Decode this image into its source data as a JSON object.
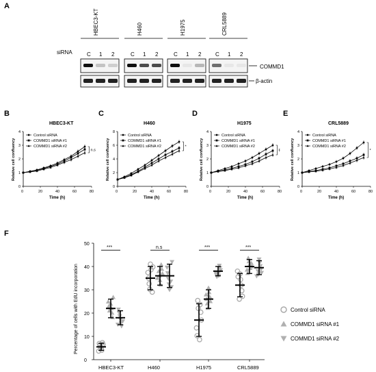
{
  "panel_letters": [
    "A",
    "B",
    "C",
    "D",
    "E",
    "F"
  ],
  "blot": {
    "cell_lines": [
      "HBEC3-KT",
      "H460",
      "H1975",
      "CRL5889"
    ],
    "lane_labels": [
      "C",
      "1",
      "2"
    ],
    "sirna_label": "siRNA",
    "proteins": [
      "COMMD1",
      "β-actin"
    ],
    "commd1_intensity": [
      [
        1.0,
        0.25,
        0.2
      ],
      [
        1.0,
        0.75,
        0.75
      ],
      [
        1.0,
        0.1,
        0.3
      ],
      [
        0.6,
        0.1,
        0.1
      ]
    ]
  },
  "growth_panels": [
    {
      "title": "HBEC3-KT",
      "xlabel": "Time (h)",
      "ylabel": "Relative cell confluency",
      "sig": "n.s",
      "ylim": [
        0,
        4
      ],
      "yticks": [
        0,
        1,
        2,
        3,
        4
      ],
      "xticks": [
        0,
        20,
        40,
        60,
        80
      ]
    },
    {
      "title": "H460",
      "xlabel": "Time (h)",
      "ylabel": "Relative cell confluency",
      "sig": "*",
      "ylim": [
        0,
        8
      ],
      "yticks": [
        0,
        2,
        4,
        6,
        8
      ],
      "xticks": [
        0,
        20,
        40,
        60,
        80
      ]
    },
    {
      "title": "H1975",
      "xlabel": "Time (h)",
      "ylabel": "Relative cell confluency",
      "sig": "*",
      "sig2": "*",
      "ylim": [
        0,
        4
      ],
      "yticks": [
        0,
        1,
        2,
        3,
        4
      ],
      "xticks": [
        0,
        20,
        40,
        60,
        80
      ]
    },
    {
      "title": "CRL5889",
      "xlabel": "Time (h)",
      "ylabel": "Relative cell confluency",
      "sig": "*",
      "ylim": [
        0,
        4
      ],
      "yticks": [
        0,
        1,
        2,
        3,
        4
      ],
      "xticks": [
        0,
        20,
        40,
        60,
        80
      ]
    }
  ],
  "growth_legend": [
    "Control siRNA",
    "COMMD1 siRNA #1",
    "COMMD1 siRNA #2"
  ],
  "chart_data": [
    {
      "type": "line",
      "title": "HBEC3-KT",
      "xlabel": "Time (h)",
      "ylabel": "Relative cell confluency",
      "x": [
        0,
        8,
        16,
        24,
        32,
        40,
        48,
        56,
        64,
        72
      ],
      "series": [
        {
          "name": "Control siRNA",
          "values": [
            1.0,
            1.1,
            1.2,
            1.35,
            1.5,
            1.7,
            1.95,
            2.2,
            2.55,
            2.9
          ]
        },
        {
          "name": "COMMD1 siRNA #1",
          "values": [
            1.0,
            1.08,
            1.17,
            1.3,
            1.45,
            1.62,
            1.85,
            2.1,
            2.4,
            2.7
          ]
        },
        {
          "name": "COMMD1 siRNA #2",
          "values": [
            1.0,
            1.05,
            1.12,
            1.25,
            1.38,
            1.55,
            1.75,
            1.95,
            2.2,
            2.45
          ]
        }
      ],
      "ylim": [
        0,
        4
      ]
    },
    {
      "type": "line",
      "title": "H460",
      "xlabel": "Time (h)",
      "ylabel": "Relative cell confluency",
      "x": [
        0,
        8,
        16,
        24,
        32,
        40,
        48,
        56,
        64,
        72
      ],
      "series": [
        {
          "name": "Control siRNA",
          "values": [
            1.0,
            1.4,
            1.9,
            2.5,
            3.1,
            3.8,
            4.5,
            5.2,
            5.9,
            6.5
          ]
        },
        {
          "name": "COMMD1 siRNA #1",
          "values": [
            1.0,
            1.3,
            1.7,
            2.2,
            2.8,
            3.4,
            4.0,
            4.6,
            5.1,
            5.6
          ]
        },
        {
          "name": "COMMD1 siRNA #2",
          "values": [
            1.0,
            1.25,
            1.6,
            2.1,
            2.6,
            3.1,
            3.7,
            4.2,
            4.7,
            5.2
          ]
        }
      ],
      "ylim": [
        0,
        8
      ]
    },
    {
      "type": "line",
      "title": "H1975",
      "xlabel": "Time (h)",
      "ylabel": "Relative cell confluency",
      "x": [
        0,
        8,
        16,
        24,
        32,
        40,
        48,
        56,
        64,
        72
      ],
      "series": [
        {
          "name": "Control siRNA",
          "values": [
            1.0,
            1.15,
            1.3,
            1.45,
            1.65,
            1.85,
            2.1,
            2.4,
            2.7,
            3.0
          ]
        },
        {
          "name": "COMMD1 siRNA #1",
          "values": [
            1.0,
            1.1,
            1.2,
            1.32,
            1.45,
            1.6,
            1.8,
            2.05,
            2.35,
            2.6
          ]
        },
        {
          "name": "COMMD1 siRNA #2",
          "values": [
            1.0,
            1.08,
            1.15,
            1.25,
            1.35,
            1.5,
            1.65,
            1.85,
            2.1,
            2.3
          ]
        }
      ],
      "ylim": [
        0,
        4
      ]
    },
    {
      "type": "line",
      "title": "CRL5889",
      "xlabel": "Time (h)",
      "ylabel": "Relative cell confluency",
      "x": [
        0,
        8,
        16,
        24,
        32,
        40,
        48,
        56,
        64,
        72
      ],
      "series": [
        {
          "name": "Control siRNA",
          "values": [
            1.0,
            1.15,
            1.3,
            1.45,
            1.6,
            1.8,
            2.05,
            2.4,
            2.8,
            3.2
          ]
        },
        {
          "name": "COMMD1 siRNA #1",
          "values": [
            1.0,
            1.08,
            1.15,
            1.25,
            1.35,
            1.5,
            1.65,
            1.85,
            2.05,
            2.3
          ]
        },
        {
          "name": "COMMD1 siRNA #2",
          "values": [
            1.0,
            1.05,
            1.1,
            1.18,
            1.27,
            1.38,
            1.52,
            1.7,
            1.9,
            2.1
          ]
        }
      ],
      "ylim": [
        0,
        4
      ]
    },
    {
      "type": "scatter",
      "ylabel": "Percentage of cells with EdU incorporation",
      "categories": [
        "HBEC3-KT",
        "H460",
        "H1975",
        "CRL5889"
      ],
      "ylim": [
        0,
        50
      ],
      "yticks": [
        0,
        10,
        20,
        30,
        40,
        50
      ],
      "sig_labels": [
        "***",
        "n.s",
        "***",
        "***"
      ],
      "series": [
        {
          "name": "Control siRNA",
          "means": [
            5.5,
            35,
            17,
            32
          ],
          "sd": [
            1.5,
            5,
            7,
            5
          ]
        },
        {
          "name": "COMMD1 siRNA #1",
          "means": [
            22,
            36,
            26,
            40
          ],
          "sd": [
            4,
            4,
            4,
            3
          ]
        },
        {
          "name": "COMMD1 siRNA #2",
          "means": [
            18,
            36,
            38,
            39.5
          ],
          "sd": [
            3,
            5,
            2,
            3
          ]
        }
      ]
    }
  ]
}
